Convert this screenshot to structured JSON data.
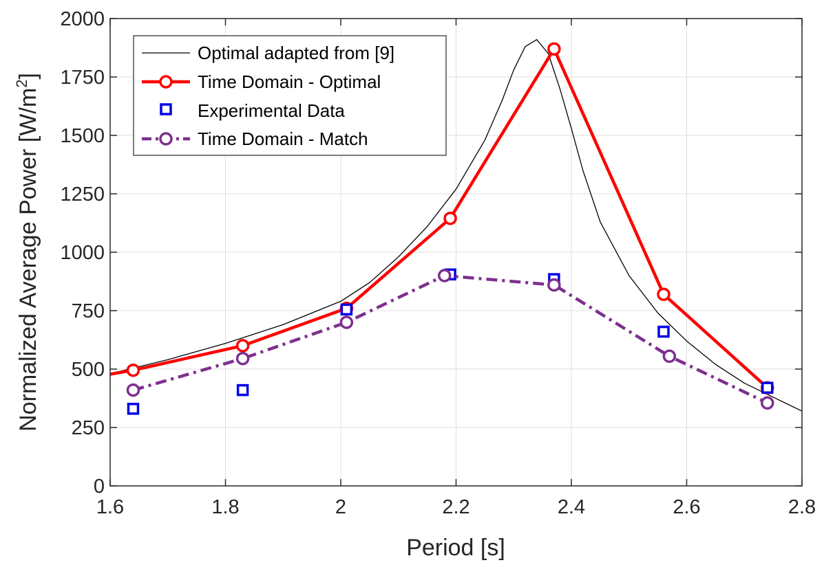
{
  "chart_data": {
    "type": "line",
    "title": "",
    "xlabel": "Period [s]",
    "ylabel_prefix": "Normalized Average Power [W/m",
    "ylabel_sup": "2",
    "ylabel_suffix": "]",
    "xlim": [
      1.6,
      2.8
    ],
    "ylim": [
      0,
      2000
    ],
    "xticks": [
      1.6,
      1.8,
      2.0,
      2.2,
      2.4,
      2.6,
      2.8
    ],
    "xtick_labels": [
      "1.6",
      "1.8",
      "2",
      "2.2",
      "2.4",
      "2.6",
      "2.8"
    ],
    "yticks": [
      0,
      250,
      500,
      750,
      1000,
      1250,
      1500,
      1750,
      2000
    ],
    "ytick_labels": [
      "0",
      "250",
      "500",
      "750",
      "1000",
      "1250",
      "1500",
      "1750",
      "2000"
    ],
    "grid": true,
    "legend_position": "top-left",
    "series": [
      {
        "name": "Optimal adapted from [9]",
        "style": "thin-line",
        "color": "#000000",
        "x": [
          1.6,
          1.7,
          1.8,
          1.9,
          2.0,
          2.05,
          2.1,
          2.15,
          2.2,
          2.25,
          2.28,
          2.3,
          2.32,
          2.34,
          2.36,
          2.38,
          2.4,
          2.42,
          2.45,
          2.5,
          2.55,
          2.6,
          2.65,
          2.7,
          2.75,
          2.8
        ],
        "y": [
          480,
          540,
          610,
          690,
          790,
          870,
          980,
          1110,
          1270,
          1480,
          1650,
          1780,
          1880,
          1910,
          1850,
          1700,
          1530,
          1350,
          1130,
          900,
          740,
          620,
          520,
          440,
          380,
          320
        ]
      },
      {
        "name": "Time Domain - Optimal",
        "style": "thick-line-circle",
        "color": "#ff0000",
        "x": [
          1.6,
          1.64,
          1.83,
          2.01,
          2.19,
          2.37,
          2.56,
          2.74
        ],
        "y": [
          478,
          495,
          600,
          760,
          1145,
          1870,
          820,
          420
        ],
        "marker_from": 1
      },
      {
        "name": "Experimental Data",
        "style": "square-marker",
        "color": "#0000e6",
        "x": [
          1.64,
          1.83,
          2.01,
          2.19,
          2.37,
          2.56,
          2.74
        ],
        "y": [
          330,
          410,
          755,
          905,
          885,
          660,
          420
        ]
      },
      {
        "name": "Time Domain - Match",
        "style": "dashdot-line-circle",
        "color": "#7e2f8e",
        "x": [
          1.64,
          1.83,
          2.01,
          2.18,
          2.37,
          2.57,
          2.74
        ],
        "y": [
          410,
          545,
          700,
          900,
          860,
          555,
          355
        ]
      }
    ]
  }
}
